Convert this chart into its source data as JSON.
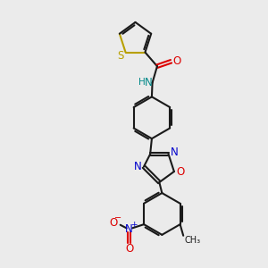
{
  "bg_color": "#ebebeb",
  "bond_color": "#1a1a1a",
  "sulfur_color": "#b8a000",
  "nitrogen_color": "#0000cc",
  "oxygen_color": "#dd0000",
  "nh_color": "#008888",
  "line_width": 1.5,
  "figsize": [
    3.0,
    3.0
  ],
  "dpi": 100,
  "xlim": [
    0,
    10
  ],
  "ylim": [
    0,
    10
  ]
}
